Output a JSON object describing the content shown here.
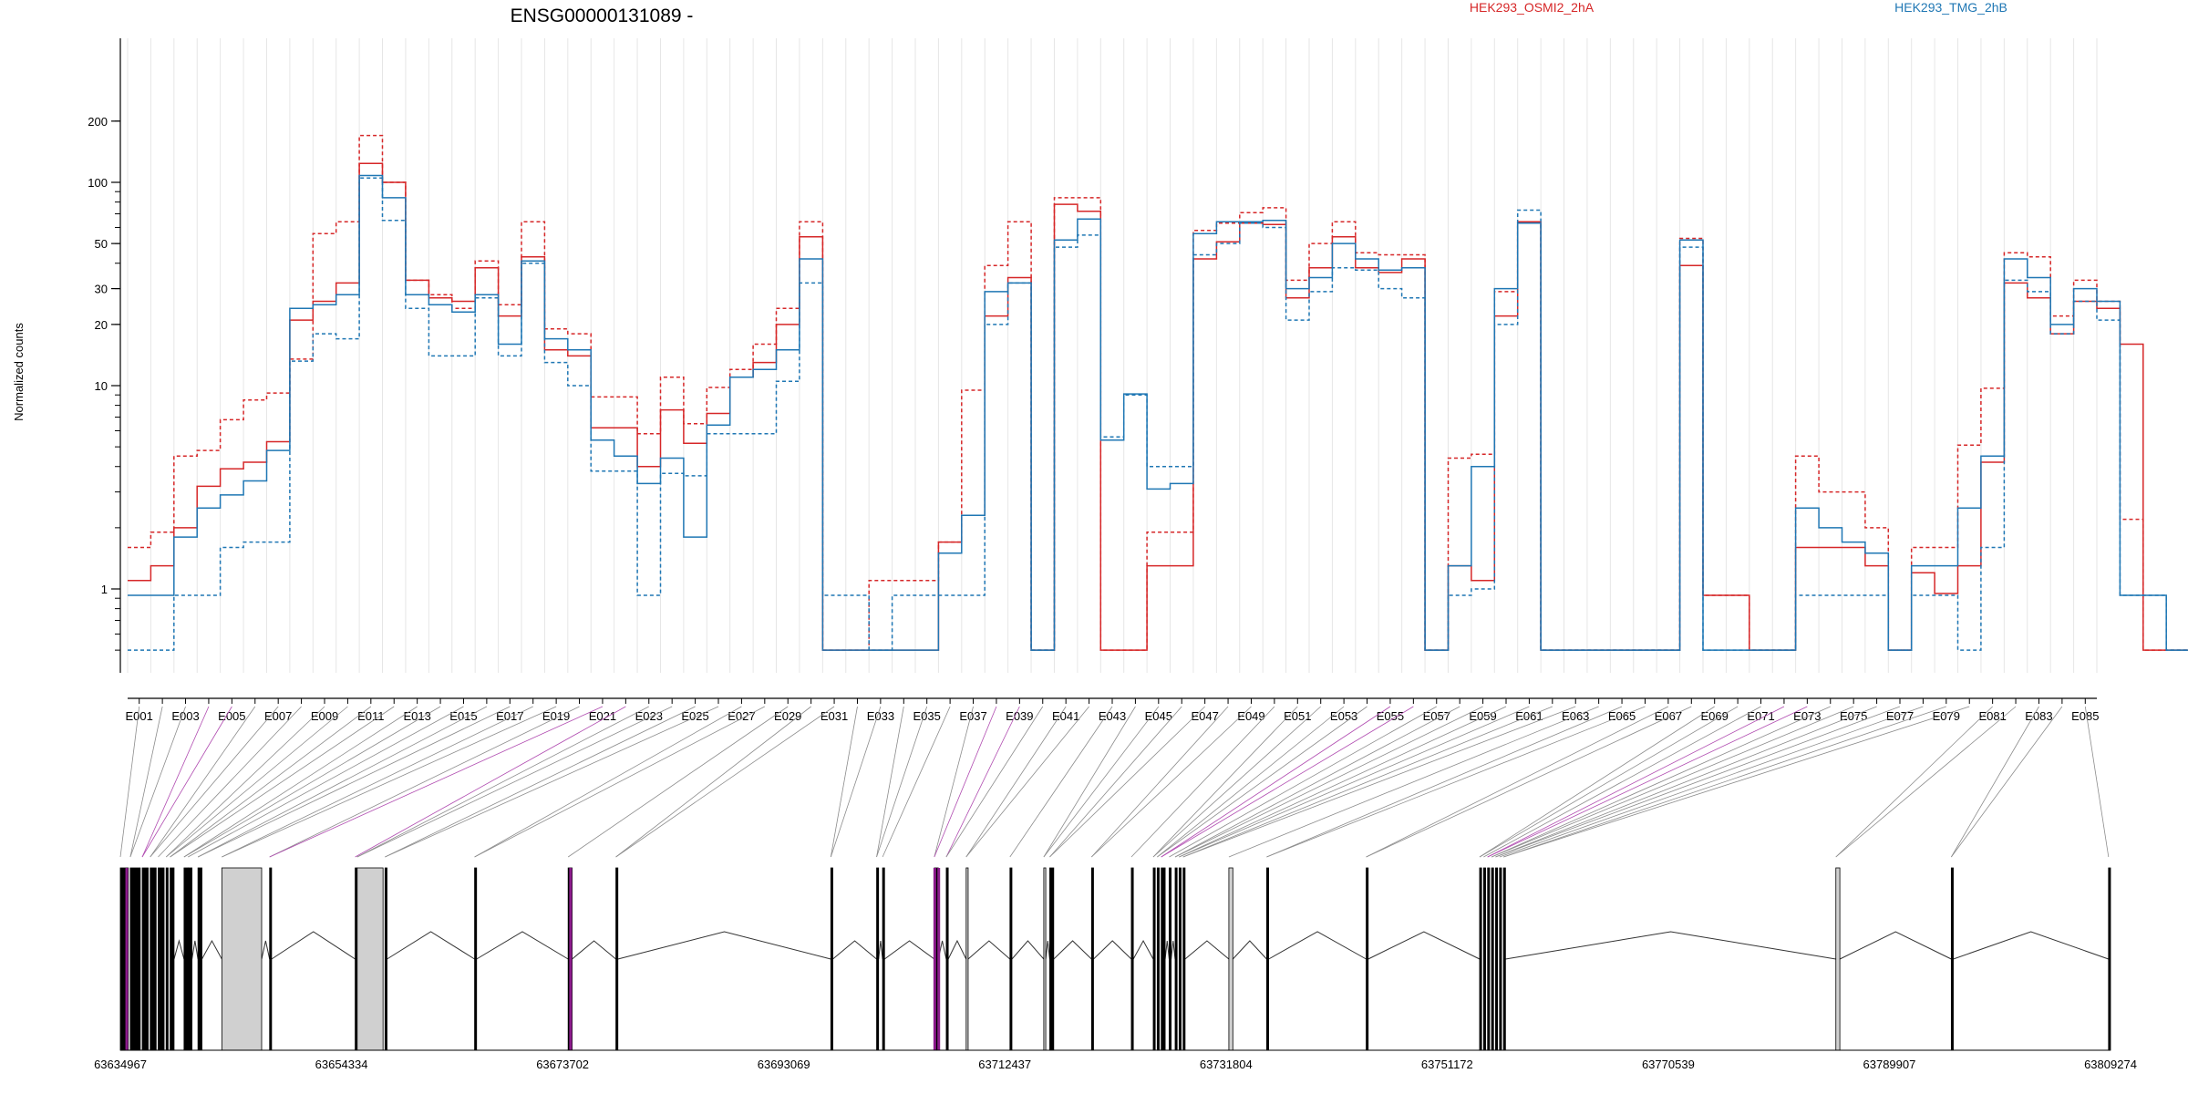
{
  "chart_data": {
    "type": "line",
    "title": "ENSG00000131089 -",
    "ylabel": "Normalized counts",
    "yscale": "log",
    "yticks": [
      "1",
      "10",
      "20",
      "30",
      "50",
      "100",
      "200"
    ],
    "legend": [
      {
        "name": "HEK293_OSMI2_2hA",
        "color": "#d62728"
      },
      {
        "name": "HEK293_TMG_2hB",
        "color": "#1f77b4"
      }
    ],
    "exon_labels": [
      "E001",
      "E003",
      "E005",
      "E007",
      "E009",
      "E011",
      "E013",
      "E015",
      "E017",
      "E019",
      "E021",
      "E023",
      "E025",
      "E027",
      "E029",
      "E031",
      "E033",
      "E035",
      "E037",
      "E039",
      "E041",
      "E043",
      "E045",
      "E047",
      "E049",
      "E051",
      "E053",
      "E055",
      "E057",
      "E059",
      "E061",
      "E063",
      "E065",
      "E067",
      "E069",
      "E071",
      "E073",
      "E075",
      "E077",
      "E079",
      "E081",
      "E083",
      "E085"
    ],
    "series": [
      {
        "name": "HEK293_OSMI2_2hA",
        "line": "dashed",
        "color": "#d62728",
        "values": [
          1.6,
          1.9,
          4.5,
          4.8,
          6.8,
          8.5,
          9.2,
          13.5,
          56,
          64,
          170,
          100,
          33,
          28,
          24,
          41,
          25,
          64,
          19,
          18,
          8.8,
          8.8,
          5.8,
          11,
          6.5,
          9.8,
          12,
          16,
          24,
          64,
          0.5,
          0.5,
          1.1,
          1.1,
          1.1,
          1.7,
          9.5,
          39,
          64,
          0.5,
          84,
          84,
          0.5,
          0.5,
          1.9,
          1.9,
          58,
          63,
          71,
          75,
          33,
          50,
          64,
          45,
          44,
          44,
          0.5,
          4.4,
          4.6,
          29,
          64,
          0.5,
          0.5,
          0.5,
          0.5,
          0.5,
          0.5,
          53,
          0.93,
          0.93,
          0.5,
          0.5,
          4.5,
          3.0,
          3.0,
          2.0,
          0.5,
          1.6,
          1.6,
          5.1,
          9.7,
          45,
          43,
          22,
          33,
          26,
          2.2,
          0.5,
          0.5,
          0.5
        ]
      },
      {
        "name": "HEK293_OSMI2_2hA",
        "line": "solid",
        "color": "#d62728",
        "values": [
          1.1,
          1.3,
          2.0,
          3.2,
          3.9,
          4.2,
          5.3,
          21,
          26,
          32,
          124,
          100,
          33,
          27,
          26,
          38,
          22,
          43,
          15,
          14,
          6.2,
          6.2,
          4.0,
          7.6,
          5.2,
          7.3,
          11,
          13,
          20,
          54,
          0.5,
          0.5,
          0.5,
          0.5,
          0.5,
          1.7,
          2.3,
          22,
          34,
          0.5,
          78,
          72,
          0.5,
          0.5,
          1.3,
          1.3,
          42,
          51,
          63,
          62,
          27,
          38,
          54,
          38,
          36,
          42,
          0.5,
          1.3,
          1.1,
          22,
          64,
          0.5,
          0.5,
          0.5,
          0.5,
          0.5,
          0.5,
          39,
          0.93,
          0.93,
          0.5,
          0.5,
          1.6,
          1.6,
          1.6,
          1.3,
          0.5,
          1.2,
          0.95,
          1.3,
          4.2,
          32,
          27,
          18,
          26,
          24,
          16,
          0.5,
          0.5,
          0.5
        ]
      },
      {
        "name": "HEK293_TMG_2hB",
        "line": "dashed",
        "color": "#1f77b4",
        "values": [
          0.5,
          0.5,
          0.93,
          0.93,
          1.6,
          1.7,
          1.7,
          13.2,
          18,
          17,
          105,
          65,
          24,
          14,
          14,
          27,
          14,
          40,
          13,
          10,
          3.8,
          3.8,
          0.93,
          3.7,
          3.6,
          5.8,
          5.8,
          5.8,
          10.5,
          32,
          0.93,
          0.93,
          0.5,
          0.93,
          0.93,
          0.93,
          0.93,
          20,
          32,
          0.5,
          48,
          55,
          5.6,
          9.0,
          4.0,
          4.0,
          44,
          50,
          63,
          60,
          21,
          29,
          38,
          37,
          30,
          27,
          0.5,
          0.93,
          1.0,
          20,
          73,
          0.5,
          0.5,
          0.5,
          0.5,
          0.5,
          0.5,
          48,
          0.5,
          0.5,
          0.5,
          0.5,
          0.93,
          0.93,
          0.93,
          0.93,
          0.5,
          0.93,
          0.93,
          0.5,
          1.6,
          33,
          29,
          18,
          26,
          21,
          0.93,
          0.93,
          0.5,
          0.5
        ]
      },
      {
        "name": "HEK293_TMG_2hB",
        "line": "solid",
        "color": "#1f77b4",
        "values": [
          0.93,
          0.93,
          1.8,
          2.5,
          2.9,
          3.4,
          4.8,
          24,
          25,
          28,
          108,
          84,
          28,
          25,
          23,
          28,
          16,
          41,
          17,
          15,
          5.4,
          4.5,
          3.3,
          4.4,
          1.8,
          6.4,
          11,
          12,
          15,
          42,
          0.5,
          0.5,
          0.5,
          0.5,
          0.5,
          1.5,
          2.3,
          29,
          32,
          0.5,
          52,
          66,
          5.4,
          9.1,
          3.1,
          3.3,
          56,
          64,
          64,
          65,
          30,
          34,
          50,
          42,
          37,
          38,
          0.5,
          1.3,
          4.0,
          30,
          63,
          0.5,
          0.5,
          0.5,
          0.5,
          0.5,
          0.5,
          52,
          0.5,
          0.5,
          0.5,
          0.5,
          2.5,
          2.0,
          1.7,
          1.5,
          0.5,
          1.3,
          1.3,
          2.5,
          4.5,
          42,
          34,
          20,
          30,
          26,
          0.93,
          0.93,
          0.5,
          0.5
        ]
      }
    ],
    "gene_model": {
      "coordinates": [
        "63634967",
        "63654334",
        "63673702",
        "63693069",
        "63712437",
        "63731804",
        "63751172",
        "63770539",
        "63789907",
        "63809274"
      ]
    }
  }
}
